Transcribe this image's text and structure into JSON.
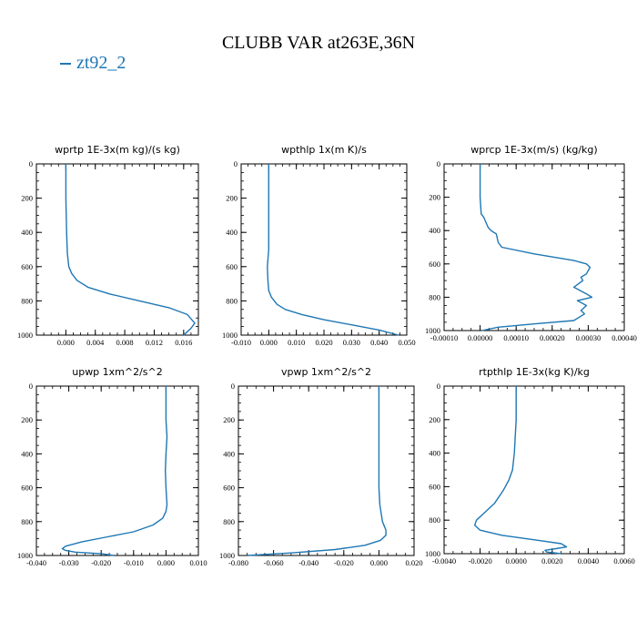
{
  "figure": {
    "title": "CLUBB VAR at263E,36N",
    "legend": [
      {
        "name": "zt92_2",
        "color": "#1f77b4"
      }
    ]
  },
  "chart_data": [
    {
      "type": "line",
      "title": "wprtp  1E-3x(m kg)/(s kg)",
      "xlim": [
        -0.004,
        0.018
      ],
      "ylim": [
        1000,
        0
      ],
      "xticks": [
        0.0,
        0.004,
        0.008,
        0.012,
        0.016
      ],
      "xtick_labels": [
        "0.000",
        "0.004",
        "0.008",
        "0.012",
        "0.016"
      ],
      "yticks": [
        0,
        200,
        400,
        600,
        800,
        1000
      ],
      "ytick_labels": [
        "0",
        "200",
        "400",
        "600",
        "800",
        "1000"
      ],
      "series": [
        {
          "color": "#1f77b4",
          "x": [
            0.0,
            0.0,
            0.0001,
            0.0002,
            0.0004,
            0.0008,
            0.0015,
            0.003,
            0.006,
            0.01,
            0.014,
            0.0165,
            0.0175,
            0.017,
            0.0165,
            0.016
          ],
          "y": [
            0,
            200,
            400,
            520,
            600,
            640,
            680,
            720,
            760,
            800,
            840,
            880,
            930,
            960,
            980,
            1000
          ]
        }
      ]
    },
    {
      "type": "line",
      "title": "wpthlp  1x(m K)/s",
      "xlim": [
        -0.01,
        0.05
      ],
      "ylim": [
        1000,
        0
      ],
      "xticks": [
        -0.01,
        0.0,
        0.01,
        0.02,
        0.03,
        0.04,
        0.05
      ],
      "xtick_labels": [
        "-0.010",
        "0.000",
        "0.010",
        "0.020",
        "0.030",
        "0.040",
        "0.050"
      ],
      "yticks": [
        0,
        200,
        400,
        600,
        800,
        1000
      ],
      "ytick_labels": [
        "0",
        "200",
        "400",
        "600",
        "800",
        "1000"
      ],
      "series": [
        {
          "color": "#1f77b4",
          "x": [
            0.0,
            0.0,
            0.0,
            0.0,
            -0.0005,
            -0.0003,
            0.0,
            0.001,
            0.003,
            0.006,
            0.012,
            0.02,
            0.03,
            0.04,
            0.047
          ],
          "y": [
            0,
            200,
            400,
            500,
            600,
            680,
            740,
            780,
            820,
            850,
            880,
            910,
            940,
            970,
            1000
          ]
        }
      ]
    },
    {
      "type": "line",
      "title": "wprcp  1E-3x(m/s) (kg/kg)",
      "xlim": [
        -0.0001,
        0.0004
      ],
      "ylim": [
        1000,
        0
      ],
      "xticks": [
        -0.0001,
        0.0,
        0.0001,
        0.0002,
        0.0003,
        0.0004
      ],
      "xtick_labels": [
        "-0.00010",
        "0.00000",
        "0.00010",
        "0.00020",
        "0.00030",
        "0.00040"
      ],
      "yticks": [
        0,
        200,
        400,
        600,
        800,
        1000
      ],
      "ytick_labels": [
        "0",
        "200",
        "400",
        "600",
        "800",
        "1000"
      ],
      "series": [
        {
          "color": "#1f77b4",
          "x": [
            0.0,
            0.0,
            3e-06,
            1e-05,
            2.2e-05,
            3e-05,
            4.5e-05,
            5e-05,
            6e-05,
            0.00015,
            0.00026,
            0.000295,
            0.000305,
            0.000295,
            0.00028,
            0.000285,
            0.00026,
            0.000295,
            0.00031,
            0.00027,
            0.000295,
            0.00028,
            0.00029,
            0.00026,
            0.00015,
            5e-05,
            5e-06
          ],
          "y": [
            0,
            200,
            300,
            320,
            380,
            400,
            420,
            470,
            500,
            540,
            580,
            600,
            620,
            660,
            680,
            700,
            740,
            780,
            800,
            820,
            850,
            880,
            900,
            940,
            960,
            980,
            1000
          ]
        }
      ]
    },
    {
      "type": "line",
      "title": "upwp  1xm^2/s^2",
      "xlim": [
        -0.04,
        0.01
      ],
      "ylim": [
        1000,
        0
      ],
      "xticks": [
        -0.04,
        -0.03,
        -0.02,
        -0.01,
        0.0,
        0.01
      ],
      "xtick_labels": [
        "-0.040",
        "-0.030",
        "-0.020",
        "-0.010",
        "0.000",
        "0.010"
      ],
      "yticks": [
        0,
        200,
        400,
        600,
        800,
        1000
      ],
      "ytick_labels": [
        "0",
        "200",
        "400",
        "600",
        "800",
        "1000"
      ],
      "series": [
        {
          "color": "#1f77b4",
          "x": [
            0.0,
            0.0,
            0.0003,
            0.0,
            -0.0002,
            0.0,
            0.0003,
            0.0,
            -0.001,
            -0.004,
            -0.01,
            -0.018,
            -0.026,
            -0.031,
            -0.032,
            -0.031,
            -0.028,
            -0.02,
            -0.016
          ],
          "y": [
            0,
            200,
            300,
            400,
            500,
            600,
            700,
            740,
            780,
            820,
            860,
            890,
            920,
            945,
            960,
            970,
            980,
            990,
            1000
          ]
        }
      ]
    },
    {
      "type": "line",
      "title": "vpwp  1xm^2/s^2",
      "xlim": [
        -0.08,
        0.02
      ],
      "ylim": [
        1000,
        0
      ],
      "xticks": [
        -0.08,
        -0.06,
        -0.04,
        -0.02,
        0.0,
        0.02
      ],
      "xtick_labels": [
        "-0.080",
        "-0.060",
        "-0.040",
        "-0.020",
        "0.000",
        "0.020"
      ],
      "yticks": [
        0,
        200,
        400,
        600,
        800,
        1000
      ],
      "ytick_labels": [
        "0",
        "200",
        "400",
        "600",
        "800",
        "1000"
      ],
      "series": [
        {
          "color": "#1f77b4",
          "x": [
            0.0,
            0.0,
            0.0,
            0.0,
            0.0005,
            0.002,
            0.004,
            0.004,
            0.001,
            -0.008,
            -0.025,
            -0.05,
            -0.075
          ],
          "y": [
            0,
            200,
            400,
            600,
            700,
            800,
            850,
            880,
            910,
            940,
            965,
            985,
            1000
          ]
        }
      ]
    },
    {
      "type": "line",
      "title": "rtpthlp  1E-3x(kg K)/kg",
      "xlim": [
        -0.004,
        0.006
      ],
      "ylim": [
        1000,
        0
      ],
      "xticks": [
        -0.004,
        -0.002,
        0.0,
        0.002,
        0.004,
        0.006
      ],
      "xtick_labels": [
        "-0.0040",
        "-0.0020",
        "0.0000",
        "0.0020",
        "0.0040",
        "0.0060"
      ],
      "yticks": [
        0,
        200,
        400,
        600,
        800,
        1000
      ],
      "ytick_labels": [
        "0",
        "200",
        "400",
        "600",
        "800",
        "1000"
      ],
      "series": [
        {
          "color": "#1f77b4",
          "x": [
            0.0,
            0.0,
            -0.0001,
            -0.0002,
            -0.0004,
            -0.0007,
            -0.0012,
            -0.0018,
            -0.0022,
            -0.0023,
            -0.002,
            -0.0008,
            0.0012,
            0.0025,
            0.0028,
            0.0022,
            0.0016,
            0.0017,
            0.0025
          ],
          "y": [
            0,
            200,
            400,
            500,
            560,
            620,
            700,
            760,
            800,
            830,
            860,
            890,
            920,
            940,
            960,
            970,
            980,
            990,
            1000
          ]
        }
      ]
    }
  ]
}
